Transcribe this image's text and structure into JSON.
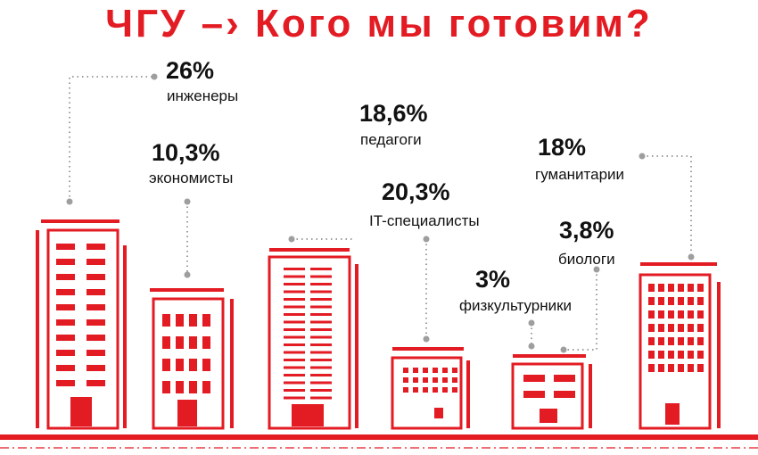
{
  "title": "ЧГУ –› Кого мы готовим?",
  "colors": {
    "accent": "#e31b23",
    "connector": "#9e9e9e",
    "text": "#111111"
  },
  "categories": [
    {
      "id": "engineers",
      "percent": "26%",
      "label": "инженеры"
    },
    {
      "id": "economists",
      "percent": "10,3%",
      "label": "экономисты"
    },
    {
      "id": "teachers",
      "percent": "18,6%",
      "label": "педагоги"
    },
    {
      "id": "it",
      "percent": "20,3%",
      "label": "IT-специалисты"
    },
    {
      "id": "sport",
      "percent": "3%",
      "label": "физкультурники"
    },
    {
      "id": "biologists",
      "percent": "3,8%",
      "label": "биологи"
    },
    {
      "id": "humanities",
      "percent": "18%",
      "label": "гуманитарии"
    }
  ]
}
